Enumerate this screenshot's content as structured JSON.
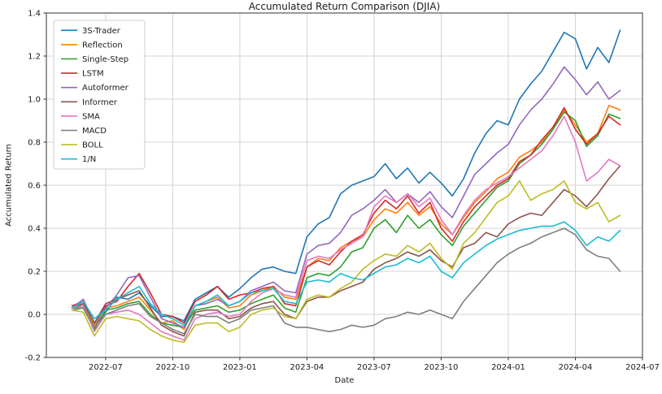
{
  "title": "Accumulated Return Comparison (DJIA)",
  "chart_data": {
    "type": "line",
    "xlabel": "Date",
    "ylabel": "Accumulated Return",
    "ylim": [
      -0.2,
      1.4
    ],
    "grid": true,
    "legend_position": "upper-left",
    "x_dates": [
      "2022-05-15",
      "2022-06-01",
      "2022-06-15",
      "2022-07-01",
      "2022-07-15",
      "2022-08-01",
      "2022-08-15",
      "2022-09-01",
      "2022-09-15",
      "2022-10-01",
      "2022-10-15",
      "2022-11-01",
      "2022-11-15",
      "2022-12-01",
      "2022-12-15",
      "2023-01-01",
      "2023-01-15",
      "2023-02-01",
      "2023-02-15",
      "2023-03-01",
      "2023-03-15",
      "2023-04-01",
      "2023-04-15",
      "2023-05-01",
      "2023-05-15",
      "2023-06-01",
      "2023-06-15",
      "2023-07-01",
      "2023-07-15",
      "2023-08-01",
      "2023-08-15",
      "2023-09-01",
      "2023-09-15",
      "2023-10-01",
      "2023-10-15",
      "2023-11-01",
      "2023-11-15",
      "2023-12-01",
      "2023-12-15",
      "2024-01-01",
      "2024-01-15",
      "2024-02-01",
      "2024-02-15",
      "2024-03-01",
      "2024-03-15",
      "2024-04-01",
      "2024-04-15",
      "2024-05-01",
      "2024-05-15",
      "2024-06-01"
    ],
    "x_ticks": [
      {
        "index": 3,
        "label": "2022-07"
      },
      {
        "index": 9,
        "label": "2022-10"
      },
      {
        "index": 15,
        "label": "2023-01"
      },
      {
        "index": 21,
        "label": "2023-04"
      },
      {
        "index": 27,
        "label": "2023-07"
      },
      {
        "index": 33,
        "label": "2023-10"
      },
      {
        "index": 39,
        "label": "2024-01"
      },
      {
        "index": 45,
        "label": "2024-04"
      },
      {
        "index": 51,
        "label": "2024-07"
      }
    ],
    "y_ticks": [
      {
        "value": -0.2,
        "label": "-0.2"
      },
      {
        "value": 0.0,
        "label": "0.0"
      },
      {
        "value": 0.2,
        "label": "0.2"
      },
      {
        "value": 0.4,
        "label": "0.4"
      },
      {
        "value": 0.6,
        "label": "0.6"
      },
      {
        "value": 0.8,
        "label": "0.8"
      },
      {
        "value": 1.0,
        "label": "1.0"
      },
      {
        "value": 1.2,
        "label": "1.2"
      },
      {
        "value": 1.4,
        "label": "1.4"
      }
    ],
    "series": [
      {
        "name": "3S-Trader",
        "color": "#1f77b4",
        "values": [
          0.03,
          0.05,
          -0.05,
          0.01,
          0.08,
          0.07,
          0.1,
          0.04,
          -0.01,
          -0.01,
          -0.03,
          0.07,
          0.1,
          0.13,
          0.08,
          0.12,
          0.17,
          0.21,
          0.22,
          0.2,
          0.19,
          0.36,
          0.42,
          0.45,
          0.56,
          0.6,
          0.62,
          0.64,
          0.7,
          0.63,
          0.68,
          0.61,
          0.66,
          0.61,
          0.55,
          0.63,
          0.75,
          0.84,
          0.9,
          0.88,
          1.0,
          1.07,
          1.13,
          1.22,
          1.31,
          1.28,
          1.14,
          1.24,
          1.17,
          1.32
        ]
      },
      {
        "name": "Reflection",
        "color": "#ff7f0e",
        "values": [
          0.04,
          0.04,
          -0.05,
          0.03,
          0.04,
          0.06,
          0.08,
          0.02,
          -0.04,
          -0.03,
          -0.07,
          0.04,
          0.06,
          0.08,
          0.03,
          0.04,
          0.09,
          0.11,
          0.13,
          0.08,
          0.07,
          0.22,
          0.26,
          0.25,
          0.31,
          0.34,
          0.36,
          0.44,
          0.49,
          0.47,
          0.52,
          0.46,
          0.5,
          0.42,
          0.37,
          0.45,
          0.52,
          0.57,
          0.63,
          0.66,
          0.73,
          0.76,
          0.8,
          0.86,
          0.95,
          0.88,
          0.8,
          0.84,
          0.97,
          0.95
        ]
      },
      {
        "name": "Single-Step",
        "color": "#2ca02c",
        "values": [
          0.03,
          0.03,
          -0.07,
          0.02,
          0.03,
          0.05,
          0.06,
          0.0,
          -0.04,
          -0.05,
          -0.06,
          0.02,
          0.03,
          0.04,
          0.01,
          0.02,
          0.05,
          0.07,
          0.09,
          0.03,
          0.01,
          0.17,
          0.19,
          0.18,
          0.22,
          0.29,
          0.31,
          0.4,
          0.44,
          0.38,
          0.46,
          0.4,
          0.44,
          0.37,
          0.32,
          0.41,
          0.47,
          0.53,
          0.59,
          0.62,
          0.7,
          0.74,
          0.79,
          0.86,
          0.94,
          0.9,
          0.78,
          0.83,
          0.93,
          0.91
        ]
      },
      {
        "name": "LSTM",
        "color": "#d62728",
        "values": [
          0.04,
          0.06,
          -0.04,
          0.04,
          0.06,
          0.13,
          0.19,
          0.1,
          0.0,
          -0.01,
          -0.04,
          0.06,
          0.09,
          0.13,
          0.07,
          0.09,
          0.1,
          0.12,
          0.13,
          0.05,
          0.04,
          0.22,
          0.25,
          0.23,
          0.29,
          0.34,
          0.37,
          0.47,
          0.53,
          0.49,
          0.55,
          0.47,
          0.52,
          0.4,
          0.34,
          0.43,
          0.5,
          0.55,
          0.6,
          0.63,
          0.71,
          0.74,
          0.81,
          0.87,
          0.96,
          0.86,
          0.79,
          0.84,
          0.92,
          0.88
        ]
      },
      {
        "name": "Autoformer",
        "color": "#9467bd",
        "values": [
          0.03,
          0.07,
          -0.04,
          0.03,
          0.09,
          0.17,
          0.18,
          0.08,
          -0.02,
          -0.04,
          -0.06,
          0.04,
          0.05,
          0.07,
          0.04,
          0.06,
          0.11,
          0.13,
          0.15,
          0.11,
          0.1,
          0.28,
          0.32,
          0.33,
          0.38,
          0.46,
          0.49,
          0.53,
          0.58,
          0.52,
          0.56,
          0.52,
          0.57,
          0.5,
          0.45,
          0.55,
          0.65,
          0.7,
          0.75,
          0.79,
          0.88,
          0.95,
          1.0,
          1.07,
          1.15,
          1.09,
          1.02,
          1.08,
          1.0,
          1.04
        ]
      },
      {
        "name": "Informer",
        "color": "#8c564b",
        "values": [
          0.03,
          0.05,
          -0.04,
          0.05,
          0.07,
          0.09,
          0.11,
          0.03,
          -0.05,
          -0.08,
          -0.1,
          0.01,
          0.02,
          0.02,
          -0.02,
          -0.01,
          0.03,
          0.05,
          0.06,
          0.0,
          -0.02,
          0.06,
          0.08,
          0.08,
          0.11,
          0.13,
          0.15,
          0.21,
          0.24,
          0.26,
          0.29,
          0.27,
          0.3,
          0.25,
          0.22,
          0.31,
          0.33,
          0.38,
          0.36,
          0.42,
          0.45,
          0.47,
          0.46,
          0.52,
          0.58,
          0.55,
          0.5,
          0.56,
          0.63,
          0.69
        ]
      },
      {
        "name": "SMA",
        "color": "#e377c2",
        "values": [
          0.03,
          0.04,
          -0.08,
          0.0,
          0.01,
          0.02,
          0.0,
          -0.04,
          -0.08,
          -0.1,
          -0.12,
          -0.02,
          0.0,
          0.01,
          -0.01,
          0.0,
          0.06,
          0.1,
          0.12,
          0.09,
          0.08,
          0.25,
          0.27,
          0.26,
          0.3,
          0.33,
          0.36,
          0.5,
          0.55,
          0.52,
          0.56,
          0.5,
          0.54,
          0.44,
          0.37,
          0.46,
          0.53,
          0.58,
          0.61,
          0.64,
          0.68,
          0.72,
          0.76,
          0.83,
          0.92,
          0.8,
          0.62,
          0.66,
          0.72,
          0.69
        ]
      },
      {
        "name": "MACD",
        "color": "#7f7f7f",
        "values": [
          0.02,
          0.03,
          -0.06,
          0.0,
          0.02,
          0.04,
          0.05,
          -0.01,
          -0.04,
          -0.07,
          -0.09,
          0.0,
          -0.01,
          -0.01,
          -0.04,
          -0.02,
          0.02,
          0.03,
          0.04,
          -0.04,
          -0.06,
          -0.06,
          -0.07,
          -0.08,
          -0.07,
          -0.05,
          -0.06,
          -0.05,
          -0.02,
          -0.01,
          0.01,
          0.0,
          0.02,
          0.0,
          -0.02,
          0.06,
          0.12,
          0.18,
          0.24,
          0.28,
          0.31,
          0.33,
          0.36,
          0.38,
          0.4,
          0.37,
          0.3,
          0.27,
          0.26,
          0.2
        ]
      },
      {
        "name": "BOLL",
        "color": "#bcbd22",
        "values": [
          0.02,
          0.01,
          -0.1,
          -0.02,
          -0.01,
          -0.02,
          -0.03,
          -0.07,
          -0.1,
          -0.12,
          -0.13,
          -0.05,
          -0.04,
          -0.04,
          -0.08,
          -0.06,
          0.0,
          0.02,
          0.03,
          -0.01,
          -0.02,
          0.07,
          0.09,
          0.08,
          0.12,
          0.15,
          0.21,
          0.25,
          0.28,
          0.27,
          0.32,
          0.29,
          0.33,
          0.26,
          0.21,
          0.33,
          0.38,
          0.45,
          0.52,
          0.55,
          0.62,
          0.53,
          0.56,
          0.58,
          0.62,
          0.52,
          0.49,
          0.52,
          0.43,
          0.46
        ]
      },
      {
        "name": "1/N",
        "color": "#17becf",
        "values": [
          0.03,
          0.06,
          -0.02,
          0.02,
          0.07,
          0.1,
          0.13,
          0.05,
          0.0,
          -0.02,
          -0.05,
          0.04,
          0.06,
          0.09,
          0.04,
          0.06,
          0.1,
          0.11,
          0.12,
          0.06,
          0.05,
          0.15,
          0.16,
          0.15,
          0.19,
          0.17,
          0.16,
          0.19,
          0.22,
          0.23,
          0.26,
          0.24,
          0.27,
          0.2,
          0.17,
          0.24,
          0.28,
          0.32,
          0.35,
          0.37,
          0.39,
          0.4,
          0.41,
          0.41,
          0.43,
          0.39,
          0.32,
          0.36,
          0.34,
          0.39
        ]
      }
    ],
    "style": {
      "grid_color": "#d3d3d3",
      "spine_color": "#333333",
      "tick_color": "#333333",
      "legend_border_color": "#cccccc",
      "background": "#ffffff"
    }
  }
}
